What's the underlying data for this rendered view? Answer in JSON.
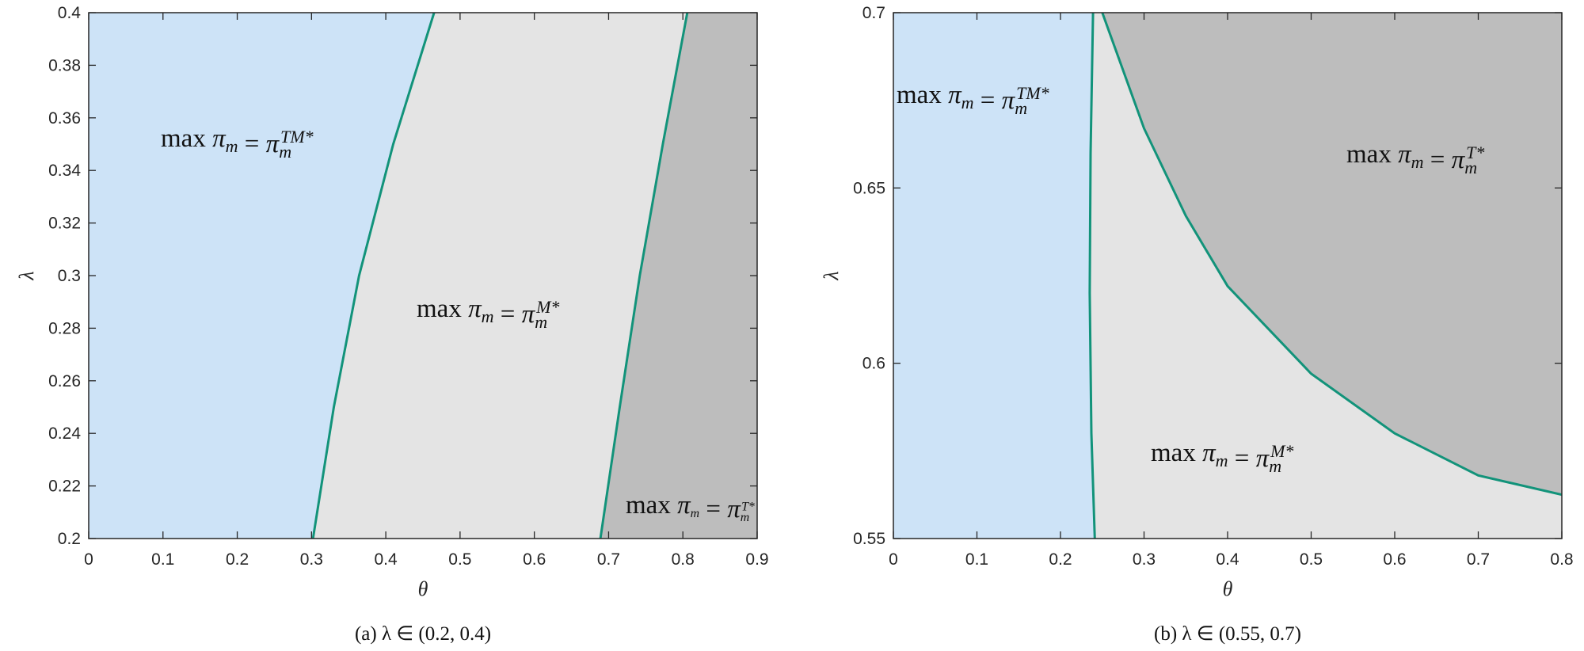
{
  "chart_data": [
    {
      "type": "area",
      "caption": "(a) λ ∈ (0.2, 0.4)",
      "xlabel": "θ",
      "ylabel": "λ",
      "xlim": [
        0,
        0.9
      ],
      "ylim": [
        0.2,
        0.4
      ],
      "x_ticks": [
        "0",
        "0.1",
        "0.2",
        "0.3",
        "0.4",
        "0.5",
        "0.6",
        "0.7",
        "0.8",
        "0.9"
      ],
      "y_ticks": [
        "0.2",
        "0.22",
        "0.24",
        "0.26",
        "0.28",
        "0.3",
        "0.32",
        "0.34",
        "0.36",
        "0.38",
        "0.4"
      ],
      "boundaries": [
        {
          "points": [
            [
              0.302,
              0.2
            ],
            [
              0.33,
              0.25
            ],
            [
              0.364,
              0.3
            ],
            [
              0.41,
              0.35
            ],
            [
              0.465,
              0.4
            ]
          ]
        },
        {
          "points": [
            [
              0.689,
              0.2
            ],
            [
              0.715,
              0.25
            ],
            [
              0.742,
              0.3
            ],
            [
              0.773,
              0.35
            ],
            [
              0.806,
              0.4
            ]
          ]
        }
      ],
      "regions": [
        {
          "label": "max π_m = π_m^{TM*}",
          "color": "#cde3f7"
        },
        {
          "label": "max π_m = π_m^{M*}",
          "color": "#e4e4e4"
        },
        {
          "label": "max π_m = π_m^{T*}",
          "color": "#bdbdbd"
        }
      ],
      "curve_color": "#12937a"
    },
    {
      "type": "area",
      "caption": "(b) λ ∈ (0.55, 0.7)",
      "xlabel": "θ",
      "ylabel": "λ",
      "xlim": [
        0,
        0.8
      ],
      "ylim": [
        0.55,
        0.7
      ],
      "x_ticks": [
        "0",
        "0.1",
        "0.2",
        "0.3",
        "0.4",
        "0.5",
        "0.6",
        "0.7",
        "0.8"
      ],
      "y_ticks": [
        "0.55",
        "0.6",
        "0.65",
        "0.7"
      ],
      "boundaries": [
        {
          "points": [
            [
              0.241,
              0.55
            ],
            [
              0.237,
              0.58
            ],
            [
              0.235,
              0.62
            ],
            [
              0.236,
              0.66
            ],
            [
              0.239,
              0.7
            ]
          ]
        },
        {
          "points": [
            [
              0.25,
              0.7
            ],
            [
              0.3,
              0.667
            ],
            [
              0.35,
              0.642
            ],
            [
              0.4,
              0.622
            ],
            [
              0.5,
              0.597
            ],
            [
              0.6,
              0.58
            ],
            [
              0.7,
              0.568
            ],
            [
              0.8,
              0.5625
            ]
          ]
        }
      ],
      "regions": [
        {
          "label": "max π_m = π_m^{TM*}",
          "color": "#cde3f7"
        },
        {
          "label": "max π_m = π_m^{T*}",
          "color": "#bdbdbd"
        },
        {
          "label": "max π_m = π_m^{M*}",
          "color": "#e4e4e4"
        }
      ],
      "curve_color": "#12937a"
    }
  ]
}
